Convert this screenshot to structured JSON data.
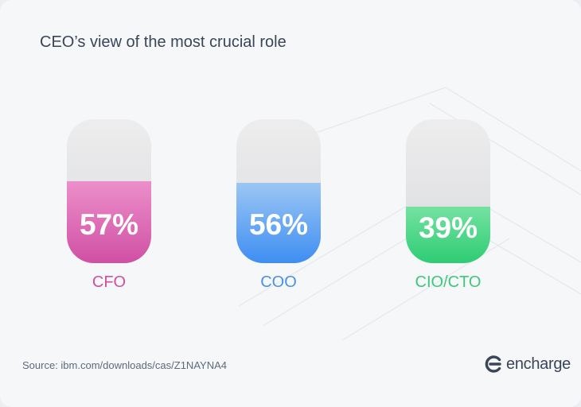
{
  "title": "CEO’s view of the most crucial role",
  "chart_data": {
    "type": "bar",
    "title": "CEO’s view of the most crucial role",
    "categories": [
      "CFO",
      "COO",
      "CIO/CTO"
    ],
    "values": [
      57,
      56,
      39
    ],
    "value_labels": [
      "57%",
      "56%",
      "39%"
    ],
    "ylim": [
      0,
      100
    ],
    "unit": "%",
    "colors": [
      {
        "top": "#ec8fca",
        "bottom": "#d050a4",
        "label": "#d14f9e"
      },
      {
        "top": "#9cc6f4",
        "bottom": "#3e8ef2",
        "label": "#4a90e8"
      },
      {
        "top": "#74e2a1",
        "bottom": "#2fcc74",
        "label": "#3ec67c"
      }
    ]
  },
  "source": "Source: ibm.com/downloads/cas/Z1NAYNA4",
  "logo": {
    "text": "encharge",
    "icon": "encharge-logo-icon"
  }
}
